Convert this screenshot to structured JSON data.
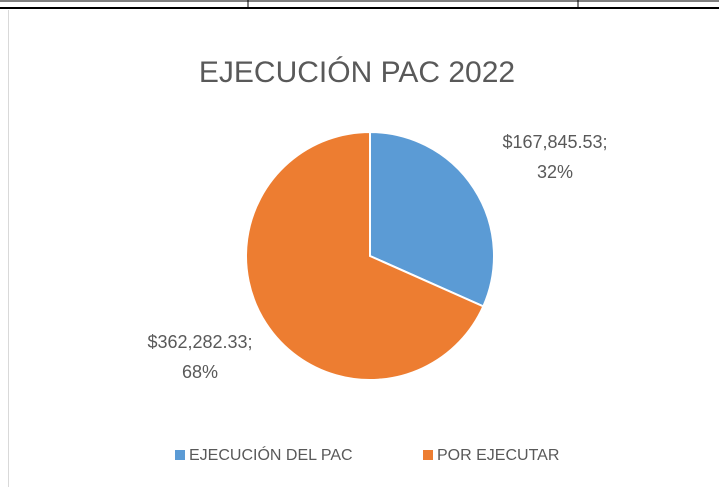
{
  "chart_data": {
    "type": "pie",
    "title": "EJECUCIÓN PAC 2022",
    "categories": [
      "EJECUCIÓN DEL PAC",
      "POR EJECUTAR"
    ],
    "values": [
      167845.53,
      362282.33
    ],
    "value_labels": [
      [
        "$167,845.53;",
        "32%"
      ],
      [
        "$362,282.33;",
        "68%"
      ]
    ],
    "colors": [
      "#5b9bd5",
      "#ed7d31"
    ]
  }
}
